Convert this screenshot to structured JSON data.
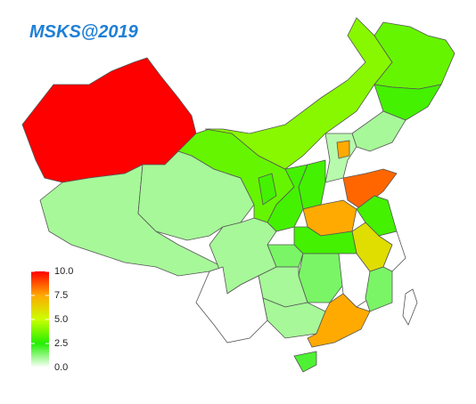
{
  "chart_data": {
    "type": "choropleth",
    "title": "MSKS@2019",
    "values": [
      10,
      1,
      1,
      3.5,
      4,
      3.5,
      3,
      1,
      0.8,
      7.5,
      3,
      3,
      3,
      8.5,
      7.5,
      3,
      6,
      3,
      1.5,
      1,
      1.5,
      0,
      0,
      1.5,
      1,
      0,
      1,
      7.5,
      2,
      0
    ],
    "clim": [
      0,
      10
    ],
    "colors": [
      "#ffffff",
      "#22ee00",
      "#ccff00",
      "#ffaa00",
      "#ff0000"
    ],
    "colorbar_ticks": [
      {
        "value": 10,
        "label": "10.0"
      },
      7.5,
      {
        "value": 5,
        "label": "5.0"
      },
      2.5,
      {
        "value": 0,
        "label": "0.0"
      }
    ]
  }
}
